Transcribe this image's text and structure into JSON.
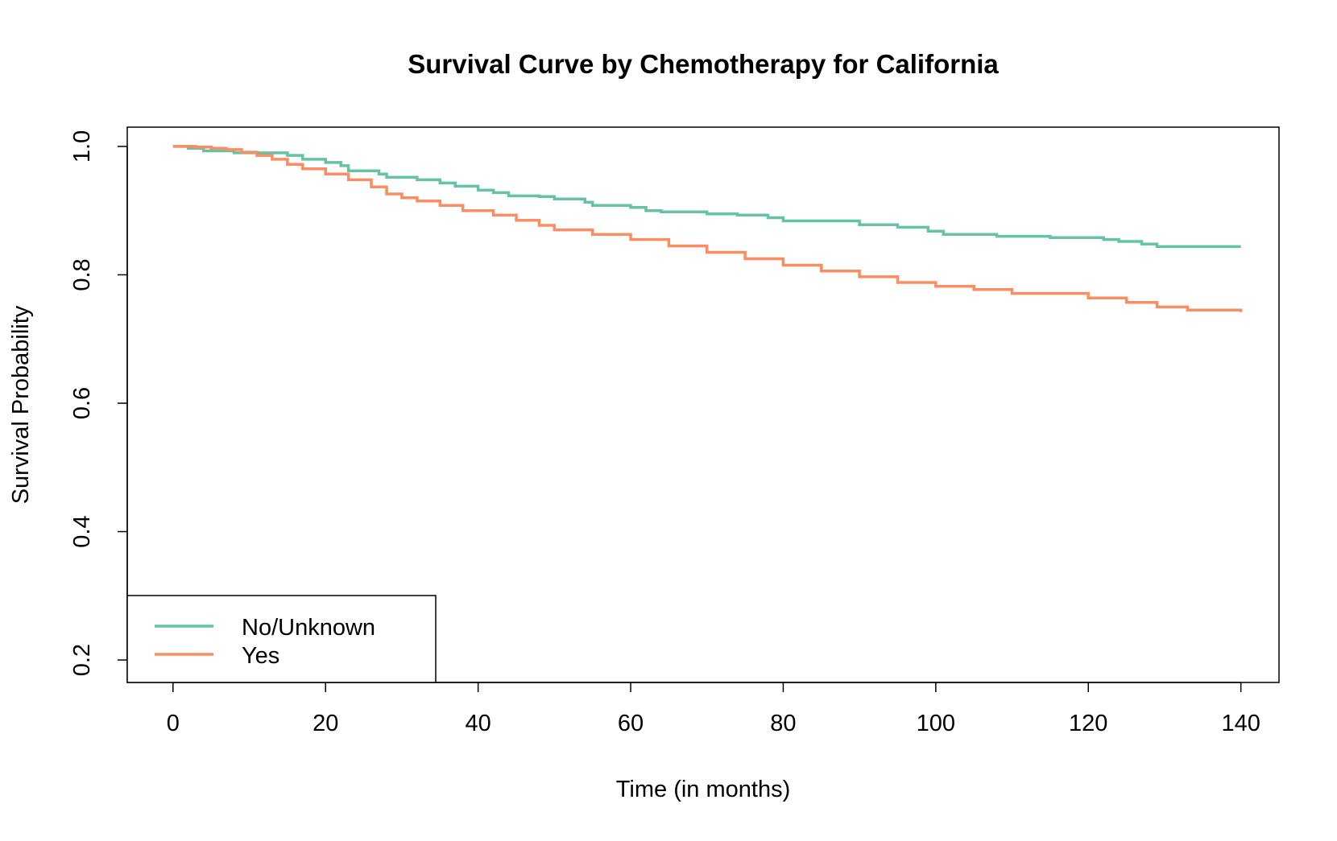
{
  "chart_data": {
    "type": "line",
    "title": "Survival Curve by Chemotherapy for California",
    "xlabel": "Time (in months)",
    "ylabel": "Survival Probability",
    "xlim": [
      -6,
      145
    ],
    "ylim": [
      0.165,
      1.03
    ],
    "x_ticks": [
      0,
      20,
      40,
      60,
      80,
      100,
      120,
      140
    ],
    "y_ticks": [
      0.2,
      0.4,
      0.6,
      0.8,
      1.0
    ],
    "x_tick_labels": [
      "0",
      "20",
      "40",
      "60",
      "80",
      "100",
      "120",
      "140"
    ],
    "y_tick_labels": [
      "0.2",
      "0.4",
      "0.6",
      "0.8",
      "1.0"
    ],
    "grid": false,
    "step": true,
    "legend": {
      "position": "bottom-left"
    },
    "series": [
      {
        "name": "No/Unknown",
        "color": "#66c2a5",
        "x": [
          0,
          2,
          4,
          8,
          15,
          17,
          20,
          22,
          23,
          27,
          28,
          32,
          35,
          37,
          40,
          42,
          44,
          48,
          50,
          54,
          55,
          60,
          62,
          64,
          70,
          74,
          78,
          80,
          90,
          95,
          99,
          101,
          108,
          115,
          122,
          124,
          127,
          129,
          140
        ],
        "y": [
          1.0,
          0.997,
          0.993,
          0.99,
          0.986,
          0.98,
          0.975,
          0.97,
          0.962,
          0.957,
          0.952,
          0.948,
          0.943,
          0.938,
          0.932,
          0.928,
          0.923,
          0.922,
          0.918,
          0.913,
          0.908,
          0.905,
          0.9,
          0.898,
          0.895,
          0.893,
          0.889,
          0.884,
          0.878,
          0.874,
          0.868,
          0.863,
          0.86,
          0.858,
          0.855,
          0.852,
          0.848,
          0.844,
          0.844
        ]
      },
      {
        "name": "Yes",
        "color": "#fc8d62",
        "x": [
          0,
          3,
          5,
          7,
          9,
          11,
          13,
          15,
          17,
          20,
          23,
          26,
          28,
          30,
          32,
          35,
          38,
          42,
          45,
          48,
          50,
          55,
          60,
          65,
          70,
          75,
          80,
          85,
          90,
          95,
          100,
          105,
          110,
          120,
          125,
          129,
          133,
          140
        ],
        "y": [
          1.0,
          0.999,
          0.997,
          0.995,
          0.991,
          0.986,
          0.98,
          0.972,
          0.965,
          0.957,
          0.948,
          0.937,
          0.926,
          0.92,
          0.915,
          0.908,
          0.9,
          0.893,
          0.885,
          0.877,
          0.87,
          0.863,
          0.855,
          0.845,
          0.835,
          0.825,
          0.815,
          0.806,
          0.797,
          0.788,
          0.782,
          0.777,
          0.771,
          0.764,
          0.757,
          0.75,
          0.745,
          0.742
        ]
      }
    ]
  }
}
